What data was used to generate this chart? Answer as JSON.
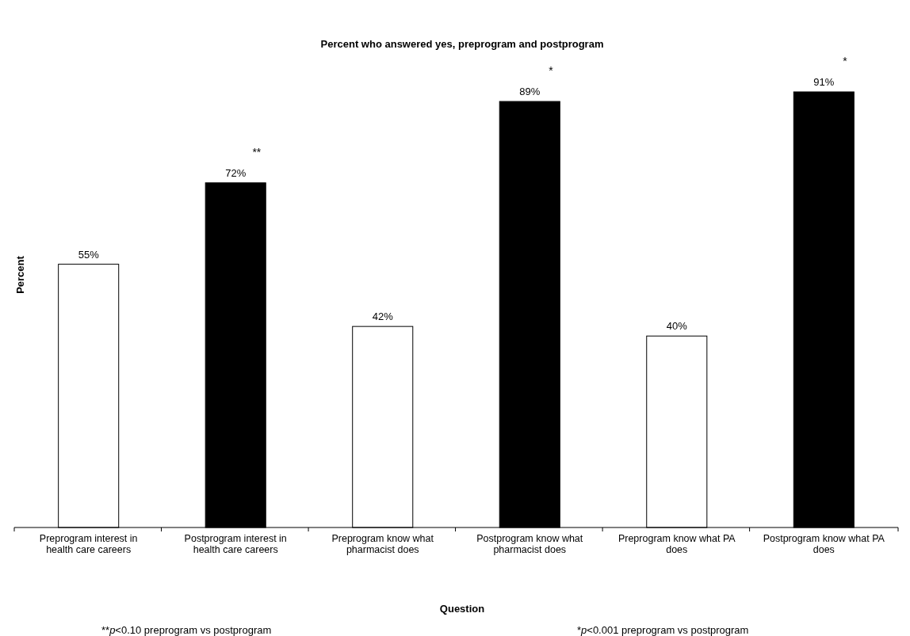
{
  "chart_data": {
    "type": "bar",
    "title": "Percent who answered yes, preprogram and postprogram",
    "xlabel": "Question",
    "ylabel": "Percent",
    "categories": [
      "Preprogram interest in health care careers",
      "Postprogram interest in health care careers",
      "Preprogram know what pharmacist does",
      "Postprogram know what pharmacist does",
      "Preprogram know what PA does",
      "Postprogram know what PA does"
    ],
    "values": [
      55,
      72,
      42,
      89,
      40,
      91
    ],
    "value_labels": [
      "55%",
      "72%",
      "42%",
      "89%",
      "40%",
      "91%"
    ],
    "colors": [
      "#ffffff",
      "#000000",
      "#ffffff",
      "#000000",
      "#ffffff",
      "#000000"
    ],
    "annotations": [
      {
        "text": "**",
        "x": "Postprogram interest in health care careers",
        "y": 72
      },
      {
        "text": "*",
        "x": "Postprogram know what pharmacist does",
        "y": 89
      },
      {
        "text": "*",
        "x": "Postprogram know what PA does",
        "y": 91
      },
      "**p<0.10 preprogram vs postprogram",
      "*p<0.001 preprogram vs postprogram"
    ]
  }
}
